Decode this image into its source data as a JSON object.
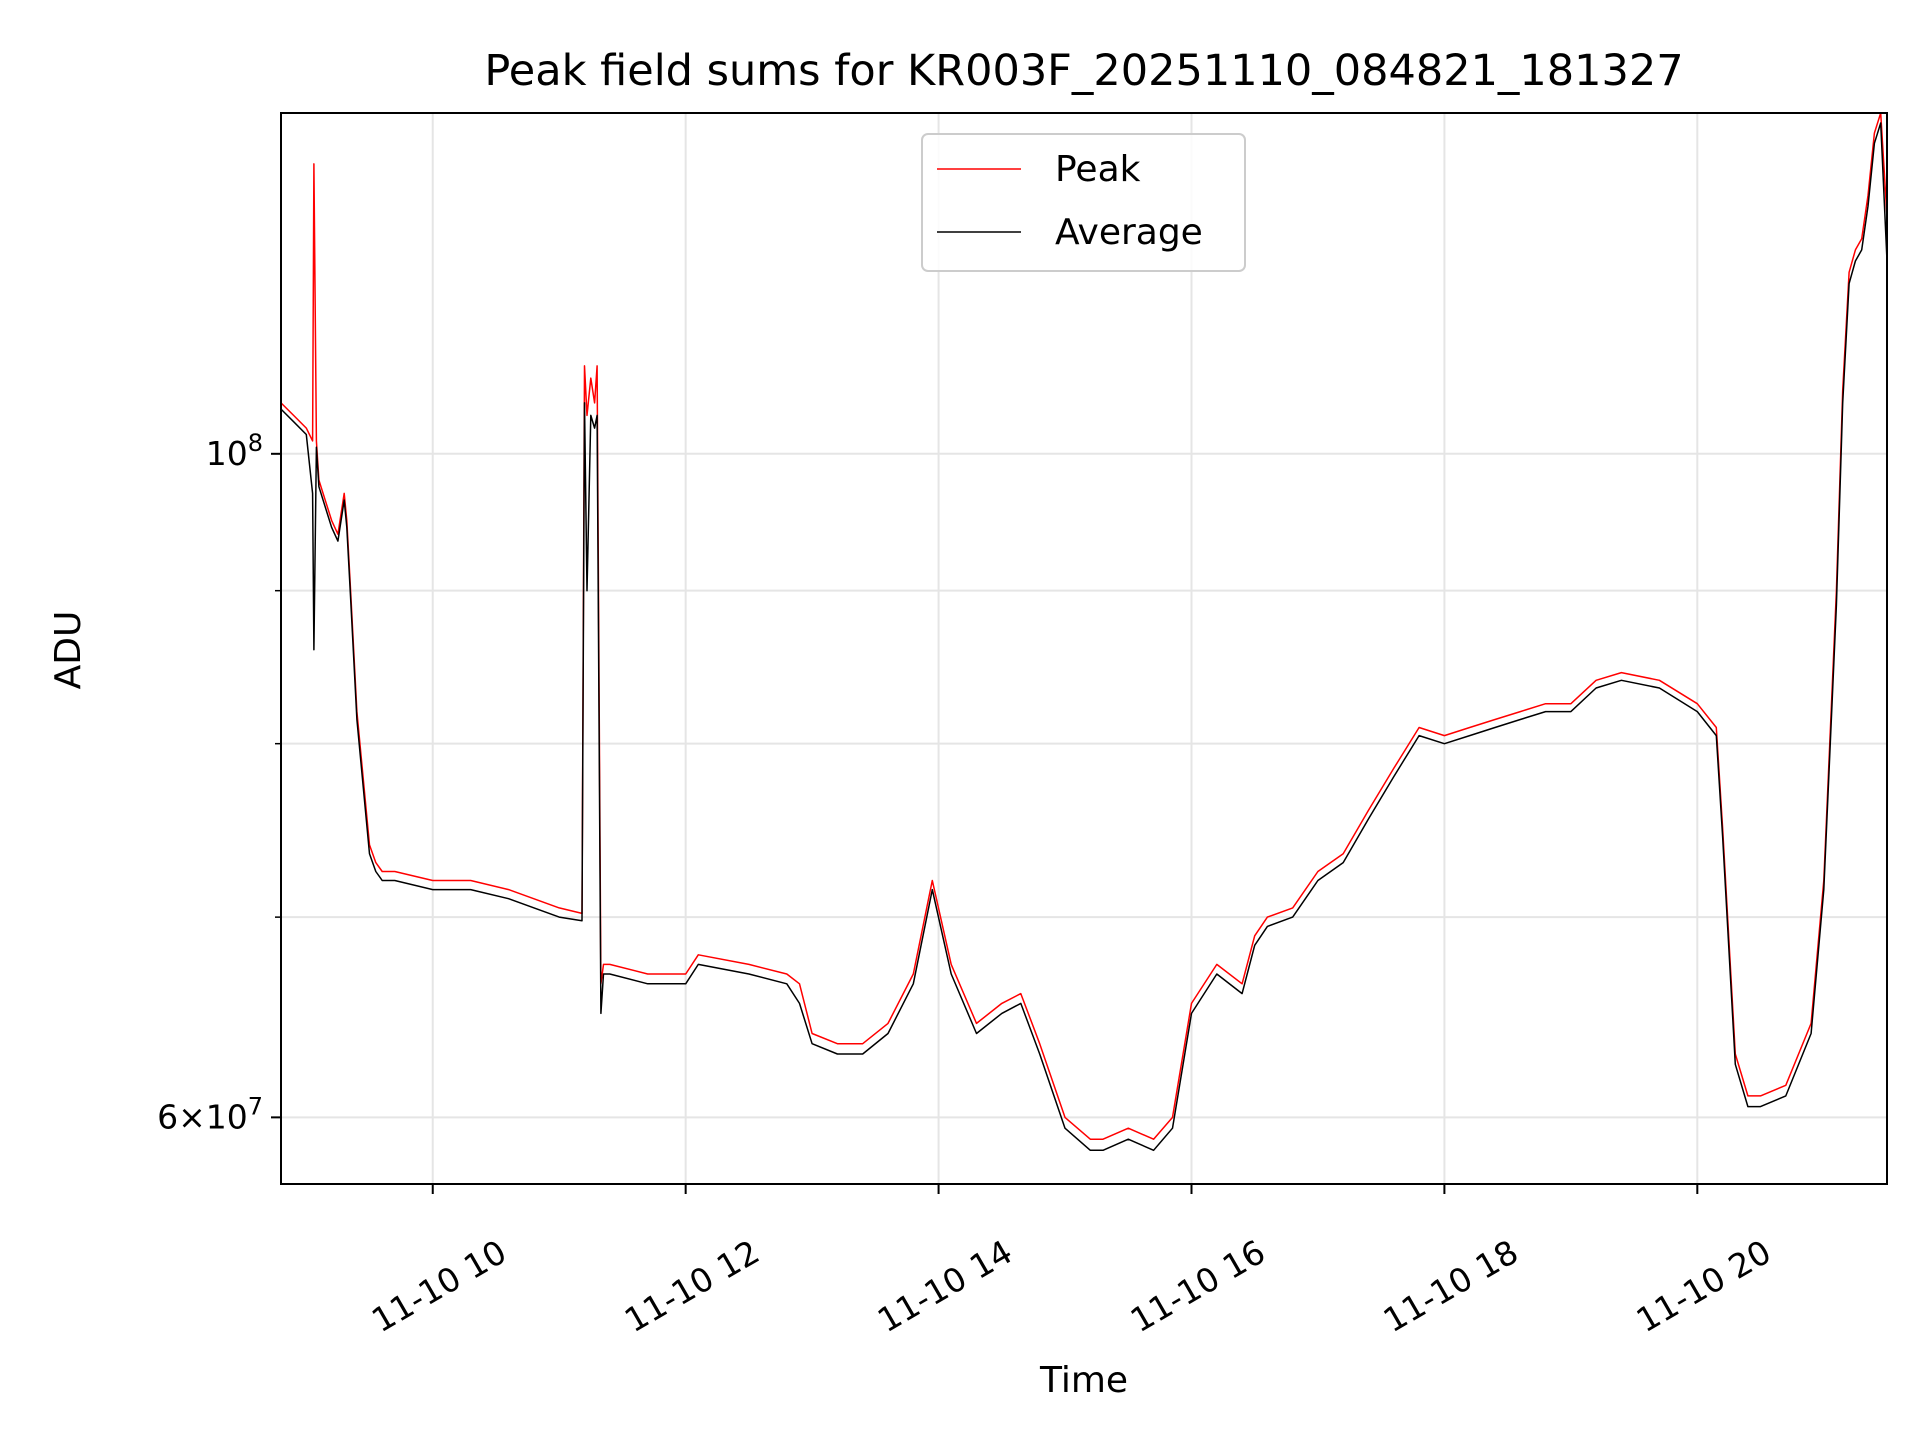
{
  "chart_data": {
    "type": "line",
    "title": "Peak field sums for KR003F_20251110_084821_181327",
    "xlabel": "Time",
    "ylabel": "ADU",
    "yscale": "log",
    "xlim": [
      8.8,
      21.5
    ],
    "ylim": [
      57000000,
      130000000
    ],
    "grid": true,
    "legend_position": "top-center",
    "x_ticks": [
      {
        "value": 10,
        "label": "11-10 10"
      },
      {
        "value": 12,
        "label": "11-10 12"
      },
      {
        "value": 14,
        "label": "11-10 14"
      },
      {
        "value": 16,
        "label": "11-10 16"
      },
      {
        "value": 18,
        "label": "11-10 18"
      },
      {
        "value": 20,
        "label": "11-10 20"
      }
    ],
    "y_major_ticks": [
      {
        "value": 60000000,
        "base": "6×10",
        "exp": "7"
      },
      {
        "value": 100000000,
        "base": "10",
        "exp": "8"
      }
    ],
    "y_minor_ticks": [
      70000000,
      80000000,
      90000000
    ],
    "series": [
      {
        "name": "Peak",
        "color": "#ff0000",
        "x": [
          8.8,
          8.9,
          9.0,
          9.05,
          9.06,
          9.08,
          9.1,
          9.2,
          9.25,
          9.3,
          9.32,
          9.35,
          9.4,
          9.5,
          9.55,
          9.6,
          9.7,
          10.0,
          10.3,
          10.6,
          11.0,
          11.18,
          11.2,
          11.22,
          11.25,
          11.28,
          11.3,
          11.33,
          11.35,
          11.4,
          11.7,
          12.0,
          12.1,
          12.5,
          12.8,
          12.9,
          13.0,
          13.2,
          13.4,
          13.6,
          13.8,
          13.95,
          14.1,
          14.3,
          14.5,
          14.65,
          14.8,
          15.0,
          15.2,
          15.3,
          15.5,
          15.7,
          15.85,
          16.0,
          16.2,
          16.4,
          16.5,
          16.6,
          16.8,
          17.0,
          17.2,
          17.4,
          17.6,
          17.8,
          18.0,
          18.2,
          18.4,
          18.6,
          18.8,
          19.0,
          19.2,
          19.4,
          19.7,
          20.0,
          20.15,
          20.2,
          20.3,
          20.4,
          20.5,
          20.7,
          20.9,
          21.0,
          21.1,
          21.15,
          21.2,
          21.25,
          21.3,
          21.35,
          21.4,
          21.45,
          21.5
        ],
        "y": [
          104000000,
          103000000,
          102000000,
          101000000,
          125000000,
          101000000,
          98000000,
          95000000,
          94000000,
          97000000,
          95000000,
          90000000,
          82000000,
          74000000,
          73000000,
          72500000,
          72500000,
          72000000,
          72000000,
          71500000,
          70500000,
          70200000,
          107000000,
          103000000,
          106000000,
          104000000,
          107000000,
          66500000,
          67500000,
          67500000,
          67000000,
          67000000,
          68000000,
          67500000,
          67000000,
          66500000,
          64000000,
          63500000,
          63500000,
          64500000,
          67000000,
          72000000,
          67500000,
          64500000,
          65500000,
          66000000,
          63500000,
          60000000,
          59000000,
          59000000,
          59500000,
          59000000,
          60000000,
          65500000,
          67500000,
          66500000,
          69000000,
          70000000,
          70500000,
          72500000,
          73500000,
          76000000,
          78500000,
          81000000,
          80500000,
          81000000,
          81500000,
          82000000,
          82500000,
          82500000,
          84000000,
          84500000,
          84000000,
          82500000,
          81000000,
          75000000,
          63000000,
          61000000,
          61000000,
          61500000,
          64500000,
          72000000,
          90000000,
          105000000,
          115000000,
          117000000,
          118000000,
          122000000,
          128000000,
          130000000,
          120000000
        ]
      },
      {
        "name": "Average",
        "color": "#000000",
        "x": [
          8.8,
          8.9,
          9.0,
          9.05,
          9.06,
          9.08,
          9.1,
          9.2,
          9.25,
          9.3,
          9.32,
          9.35,
          9.4,
          9.5,
          9.55,
          9.6,
          9.7,
          10.0,
          10.3,
          10.6,
          11.0,
          11.18,
          11.2,
          11.22,
          11.25,
          11.28,
          11.3,
          11.33,
          11.35,
          11.4,
          11.7,
          12.0,
          12.1,
          12.5,
          12.8,
          12.9,
          13.0,
          13.2,
          13.4,
          13.6,
          13.8,
          13.95,
          14.1,
          14.3,
          14.5,
          14.65,
          14.8,
          15.0,
          15.2,
          15.3,
          15.5,
          15.7,
          15.85,
          16.0,
          16.2,
          16.4,
          16.5,
          16.6,
          16.8,
          17.0,
          17.2,
          17.4,
          17.6,
          17.8,
          18.0,
          18.2,
          18.4,
          18.6,
          18.8,
          19.0,
          19.2,
          19.4,
          19.7,
          20.0,
          20.15,
          20.2,
          20.3,
          20.4,
          20.5,
          20.7,
          20.9,
          21.0,
          21.1,
          21.15,
          21.2,
          21.25,
          21.3,
          21.35,
          21.4,
          21.45,
          21.5
        ],
        "y": [
          103500000,
          102500000,
          101500000,
          97000000,
          86000000,
          100500000,
          97500000,
          94500000,
          93500000,
          96500000,
          94500000,
          89500000,
          81500000,
          73500000,
          72500000,
          72000000,
          72000000,
          71500000,
          71500000,
          71000000,
          70000000,
          69800000,
          104000000,
          90000000,
          103000000,
          102000000,
          103000000,
          65000000,
          67000000,
          67000000,
          66500000,
          66500000,
          67500000,
          67000000,
          66500000,
          65500000,
          63500000,
          63000000,
          63000000,
          64000000,
          66500000,
          71500000,
          67000000,
          64000000,
          65000000,
          65500000,
          63000000,
          59500000,
          58500000,
          58500000,
          59000000,
          58500000,
          59500000,
          65000000,
          67000000,
          66000000,
          68500000,
          69500000,
          70000000,
          72000000,
          73000000,
          75500000,
          78000000,
          80500000,
          80000000,
          80500000,
          81000000,
          81500000,
          82000000,
          82000000,
          83500000,
          84000000,
          83500000,
          82000000,
          80500000,
          74500000,
          62500000,
          60500000,
          60500000,
          61000000,
          64000000,
          71500000,
          89000000,
          104000000,
          114000000,
          116000000,
          117000000,
          121000000,
          127000000,
          129000000,
          116000000
        ]
      }
    ]
  }
}
